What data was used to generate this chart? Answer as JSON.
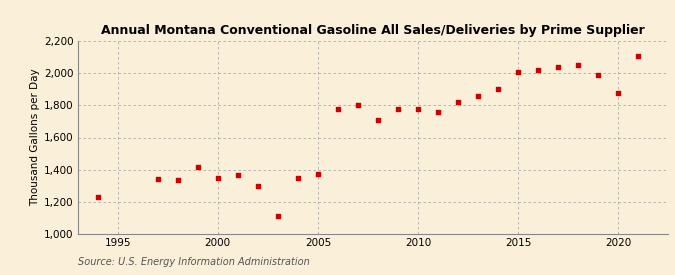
{
  "title": "Annual Montana Conventional Gasoline All Sales/Deliveries by Prime Supplier",
  "ylabel": "Thousand Gallons per Day",
  "source": "Source: U.S. Energy Information Administration",
  "background_color": "#faefd9",
  "plot_bg_color": "#faefd9",
  "marker_color": "#cc0000",
  "years": [
    1994,
    1997,
    1998,
    1999,
    2000,
    2001,
    2002,
    2003,
    2004,
    2005,
    2006,
    2007,
    2008,
    2009,
    2010,
    2011,
    2012,
    2013,
    2014,
    2015,
    2016,
    2017,
    2018,
    2019,
    2020,
    2021
  ],
  "values": [
    1230,
    1340,
    1335,
    1415,
    1350,
    1365,
    1300,
    1110,
    1350,
    1370,
    1775,
    1800,
    1710,
    1775,
    1775,
    1760,
    1820,
    1860,
    1905,
    2010,
    2020,
    2040,
    2050,
    1990,
    1880,
    2110
  ],
  "ylim": [
    1000,
    2200
  ],
  "yticks": [
    1000,
    1200,
    1400,
    1600,
    1800,
    2000,
    2200
  ],
  "xticks": [
    1995,
    2000,
    2005,
    2010,
    2015,
    2020
  ],
  "xlim": [
    1993.0,
    2022.5
  ]
}
